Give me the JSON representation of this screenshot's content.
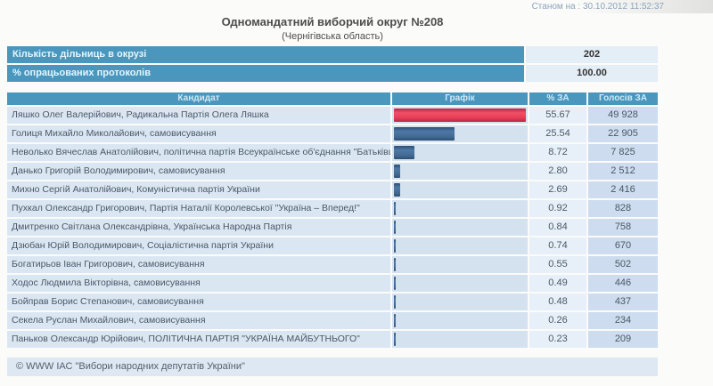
{
  "header": {
    "timestamp": "Станом на : 30.10.2012 11:52:37"
  },
  "title": "Одномандатний виборчий округ №208",
  "subtitle": "(Чернігівська область)",
  "stats": [
    {
      "label": "Кількість дільниць в окрузі",
      "value": "202"
    },
    {
      "label": "% опрацьованих протоколів",
      "value": "100.00"
    }
  ],
  "table": {
    "columns": {
      "candidate": "Кандидат",
      "graph": "Графік",
      "percent": "% ЗА",
      "votes": "Голосів ЗА"
    },
    "max_percent": 55.67,
    "rows": [
      {
        "candidate": "Ляшко Олег Валерійович, Радикальна Партія Олега Ляшка",
        "percent": "55.67",
        "votes": "49 928",
        "leader": true
      },
      {
        "candidate": "Голиця Михайло Миколайович, самовисування",
        "percent": "25.54",
        "votes": "22 905",
        "leader": false
      },
      {
        "candidate": "Неволько Вячеслав Анатолійович, політична партія Всеукраїнське об'єднання \"Батьківщина\"",
        "percent": "8.72",
        "votes": "7 825",
        "leader": false
      },
      {
        "candidate": "Данько Григорій Володимирович, самовисування",
        "percent": "2.80",
        "votes": "2 512",
        "leader": false
      },
      {
        "candidate": "Михно Сергій Анатолійович, Комуністична партія України",
        "percent": "2.69",
        "votes": "2 416",
        "leader": false
      },
      {
        "candidate": "Пухкал Олександр Григорович, Партія Наталії Королевської \"Україна – Вперед!\"",
        "percent": "0.92",
        "votes": "828",
        "leader": false
      },
      {
        "candidate": "Дмитренко Світлана Олександрівна, Українська Народна Партія",
        "percent": "0.84",
        "votes": "758",
        "leader": false
      },
      {
        "candidate": "Дзюбан Юрій Володимирович, Соціалістична партія України",
        "percent": "0.74",
        "votes": "670",
        "leader": false
      },
      {
        "candidate": "Богатирьов Іван Григорович, самовисування",
        "percent": "0.55",
        "votes": "502",
        "leader": false
      },
      {
        "candidate": "Ходос Людмила Вікторівна, самовисування",
        "percent": "0.49",
        "votes": "446",
        "leader": false
      },
      {
        "candidate": "Бойправ Борис Степанович, самовисування",
        "percent": "0.48",
        "votes": "437",
        "leader": false
      },
      {
        "candidate": "Секела Руслан Михайлович, самовисування",
        "percent": "0.26",
        "votes": "234",
        "leader": false
      },
      {
        "candidate": "Паньков Олександр Юрійович, ПОЛІТИЧНА ПАРТІЯ \"УКРАЇНА МАЙБУТНЬОГО\"",
        "percent": "0.23",
        "votes": "209",
        "leader": false
      }
    ]
  },
  "colors": {
    "header_bg": "#4a96bd",
    "leader_bar": "#e83c56",
    "bar": "#44719f"
  },
  "footer": {
    "text": "© WWW ІАС \"Вибори народних депутатів України\""
  }
}
